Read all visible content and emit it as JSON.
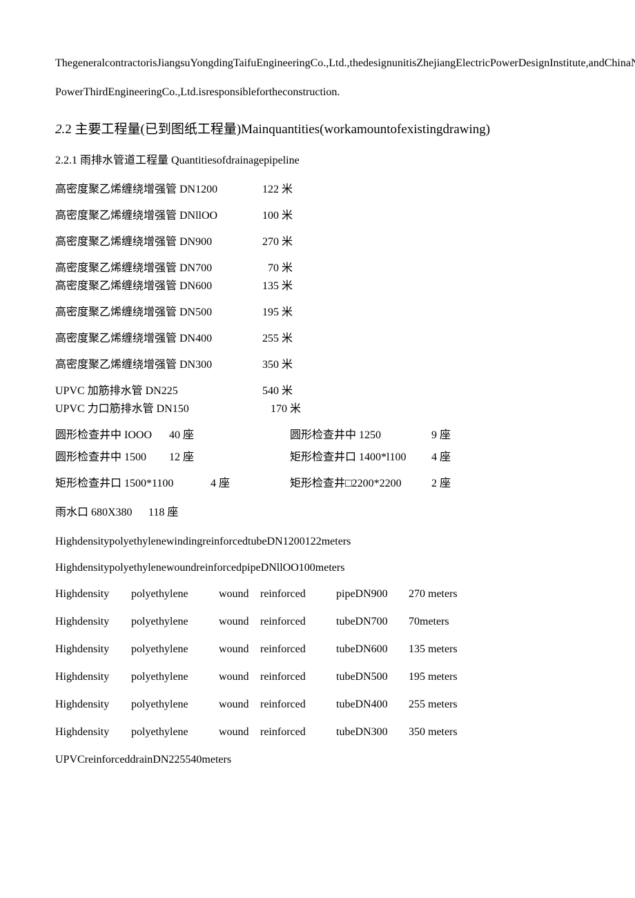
{
  "para1": "ThegeneralcontractorisJiangsuYongdingTaifuEngineeringCo.,Ltd.,thedesignunitisZhejiangElectricPowerDesignInstitute,andChinaNengjianNortheast",
  "para2": "PowerThirdEngineeringCo.,Ltd.isresponsiblefortheconstruction.",
  "heading": {
    "num": "2.",
    "rest": "2 主要工程量(已到图纸工程量)Mainquantities(workamountofexistingdrawing)"
  },
  "subheading": "2.2.1 雨排水管道工程量 Quantitiesofdrainagepipeline",
  "pipes": [
    {
      "name": "高密度聚乙烯缠绕增强管 DN1200",
      "val": "122 米",
      "tight": false
    },
    {
      "name": "高密度聚乙烯缠绕增强管 DNllOO",
      "val": "100 米",
      "tight": false
    },
    {
      "name": "高密度聚乙烯缠绕增强管 DN900",
      "val": "270 米",
      "tight": false
    },
    {
      "name": "高密度聚乙烯缠绕增强管 DN700",
      "val": "  70 米",
      "tight": true
    },
    {
      "name": "高密度聚乙烯缠绕增强管 DN600",
      "val": "135 米",
      "tight": false
    },
    {
      "name": "高密度聚乙烯缠绕增强管 DN500",
      "val": "195 米",
      "tight": false
    },
    {
      "name": "高密度聚乙烯缠绕增强管 DN400",
      "val": "255 米",
      "tight": false
    },
    {
      "name": "高密度聚乙烯缠绕增强管 DN300",
      "val": "350 米",
      "tight": false
    },
    {
      "name": "UPVC 加筋排水管 DN225",
      "val": "540 米",
      "tight": true
    },
    {
      "name": "UPVC 力口筋排水管 DN150",
      "val": "   170 米",
      "tight": false
    }
  ],
  "wells": {
    "row1": {
      "c1": "圆形检查井中 IOOO",
      "c2": "40 座",
      "c3": "圆形检查井中 1250",
      "c4": "9 座"
    },
    "row2": {
      "c1": "圆形检查井中 1500",
      "c2": "12 座",
      "c3": "矩形检查井口 1400*l100",
      "c4": "4 座"
    },
    "row3": {
      "c1": "矩形检查井口 1500*1100",
      "c2": "4 座",
      "c3": "矩形检查井□2200*2200",
      "c4": "2 座"
    }
  },
  "rainwater": {
    "c1": "雨水口 680X380",
    "c2": "118 座"
  },
  "eng1": "HighdensitypolyethylenewindingreinforcedtubeDN1200122meters",
  "eng2": "HighdensitypolyethylenewoundreinforcedpipeDNllOO100meters",
  "engtable": [
    {
      "c1": "Highdensity",
      "c2": "polyethylene",
      "c3": "wound",
      "c4": "reinforced",
      "c5": "pipeDN900",
      "c6": "270 meters"
    },
    {
      "c1": "Highdensity",
      "c2": "polyethylene",
      "c3": "wound",
      "c4": "reinforced",
      "c5": "tubeDN700",
      "c6": "70meters"
    },
    {
      "c1": "Highdensity",
      "c2": "polyethylene",
      "c3": "wound",
      "c4": "reinforced",
      "c5": "tubeDN600",
      "c6": "135 meters"
    },
    {
      "c1": "Highdensity",
      "c2": "polyethylene",
      "c3": "wound",
      "c4": "reinforced",
      "c5": "tubeDN500",
      "c6": "195 meters"
    },
    {
      "c1": "Highdensity",
      "c2": "polyethylene",
      "c3": "wound",
      "c4": "reinforced",
      "c5": "tubeDN400",
      "c6": "255 meters"
    },
    {
      "c1": "Highdensity",
      "c2": "polyethylene",
      "c3": "wound",
      "c4": "reinforced",
      "c5": "tubeDN300",
      "c6": "350 meters"
    }
  ],
  "eng3": "UPVCreinforceddrainDN225540meters"
}
